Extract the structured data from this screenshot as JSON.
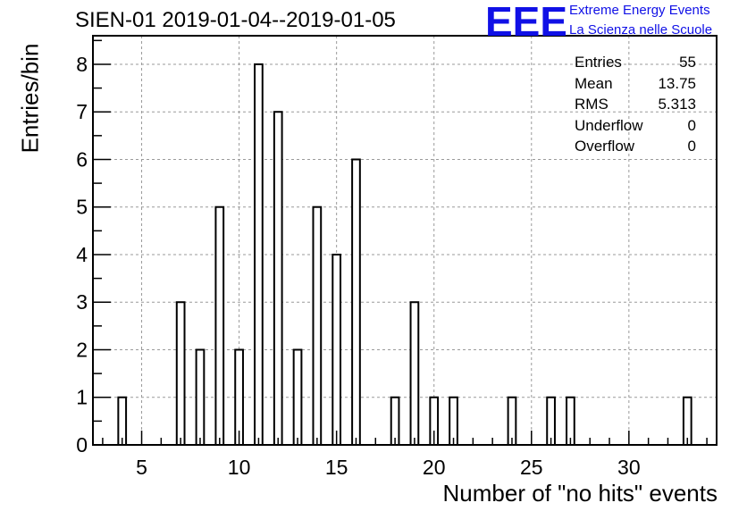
{
  "title": "SIEN-01 2019-01-04--2019-01-05",
  "logo": {
    "mark": "EEE",
    "line1": "Extreme Energy Events",
    "line2": "La Scienza nelle Scuole",
    "color": "#1010e6"
  },
  "stats": [
    {
      "label": "Entries",
      "value": "55"
    },
    {
      "label": "Mean",
      "value": "13.75"
    },
    {
      "label": "RMS",
      "value": "5.313"
    },
    {
      "label": "Underflow",
      "value": "0"
    },
    {
      "label": "Overflow",
      "value": "0"
    }
  ],
  "chart_data": {
    "type": "bar",
    "xlabel": "Number of \"no hits\" events",
    "ylabel": "Entries/bin",
    "xlim": [
      2.5,
      34.5
    ],
    "ylim": [
      0,
      8.6
    ],
    "bin_width": 0.4,
    "xticks": [
      5,
      10,
      15,
      20,
      25,
      30
    ],
    "yticks": [
      0,
      1,
      2,
      3,
      4,
      5,
      6,
      7,
      8
    ],
    "grid": true,
    "bins": [
      {
        "x": 4,
        "count": 1
      },
      {
        "x": 7,
        "count": 3
      },
      {
        "x": 8,
        "count": 2
      },
      {
        "x": 9,
        "count": 5
      },
      {
        "x": 10,
        "count": 2
      },
      {
        "x": 11,
        "count": 8
      },
      {
        "x": 12,
        "count": 7
      },
      {
        "x": 13,
        "count": 2
      },
      {
        "x": 14,
        "count": 5
      },
      {
        "x": 15,
        "count": 4
      },
      {
        "x": 16,
        "count": 6
      },
      {
        "x": 18,
        "count": 1
      },
      {
        "x": 19,
        "count": 3
      },
      {
        "x": 20,
        "count": 1
      },
      {
        "x": 21,
        "count": 1
      },
      {
        "x": 24,
        "count": 1
      },
      {
        "x": 26,
        "count": 1
      },
      {
        "x": 27,
        "count": 1
      },
      {
        "x": 33,
        "count": 1
      }
    ]
  }
}
